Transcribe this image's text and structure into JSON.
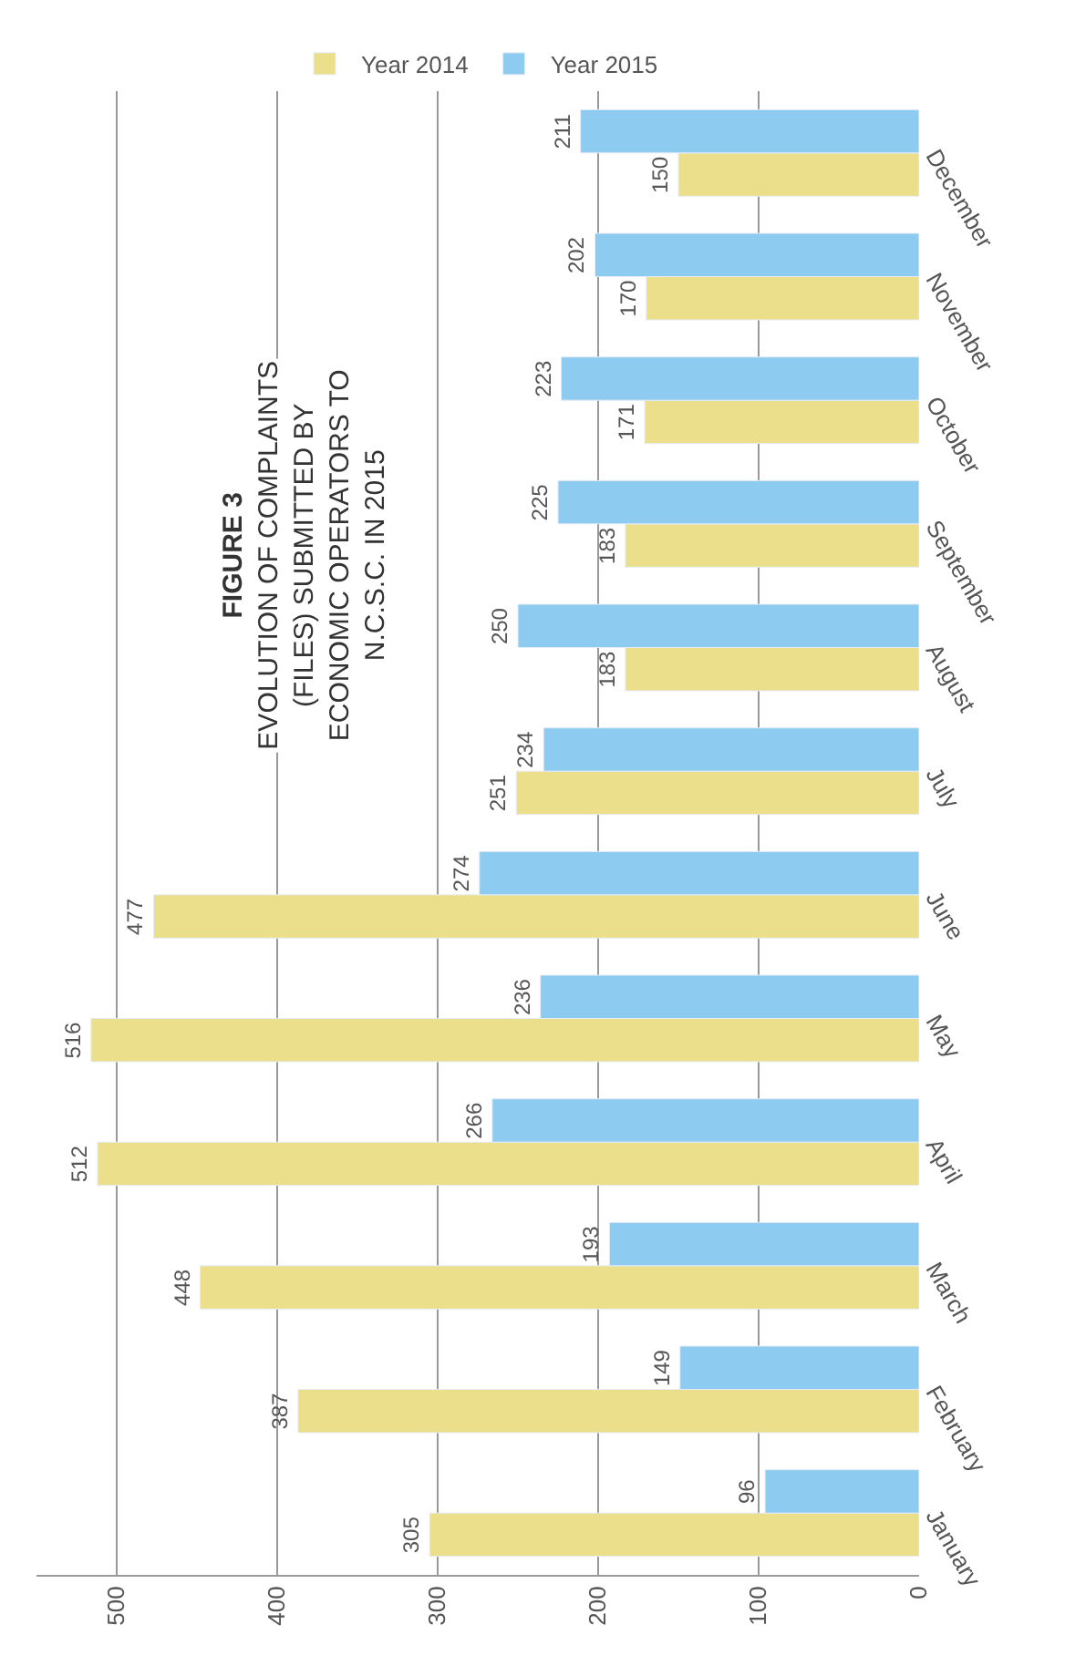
{
  "chart_data": {
    "type": "bar",
    "orientation": "horizontal",
    "title": "FIGURE 3",
    "subtitle": "EVOLUTION OF COMPLAINTS (FILES) SUBMITTED BY ECONOMIC OPERATORS TO N.C.S.C. IN 2015",
    "categories": [
      "December",
      "November",
      "October",
      "September",
      "August",
      "July",
      "June",
      "May",
      "April",
      "March",
      "February",
      "January"
    ],
    "series": [
      {
        "name": "Year 2014",
        "color": "#ebdf8c",
        "values": [
          150,
          170,
          171,
          183,
          183,
          251,
          477,
          516,
          512,
          448,
          387,
          305
        ]
      },
      {
        "name": "Year 2015",
        "color": "#8ecbf0",
        "values": [
          211,
          202,
          223,
          225,
          250,
          234,
          274,
          236,
          266,
          193,
          149,
          96
        ]
      }
    ],
    "xlim": [
      550,
      0
    ],
    "xticks": [
      0,
      100,
      200,
      300,
      400,
      500
    ],
    "grid": "x",
    "legend": "top",
    "data_labels": true
  }
}
